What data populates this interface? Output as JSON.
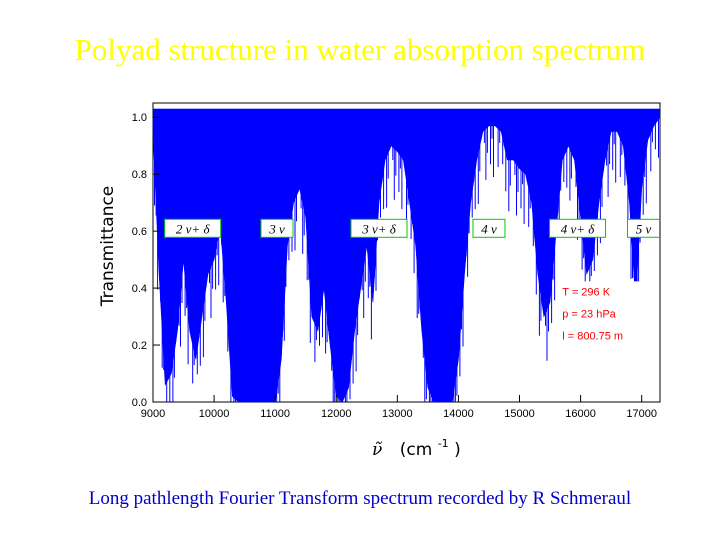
{
  "slide": {
    "title": "Polyad structure in water absorption spectrum",
    "caption": "Long pathlength Fourier Transform spectrum recorded by R Schmeraul"
  },
  "colors": {
    "title": "#ffff00",
    "caption": "#0000cc",
    "spectrum": "#0000ff",
    "label_box": "#00cc00",
    "conditions": "#ff0000"
  },
  "chart_data": {
    "type": "area",
    "xlabel": "ν̃  (cm-1)",
    "xlabel_symbol": "ν̃",
    "xlabel_unit": "(cm",
    "xlabel_exponent": "-1",
    "xlabel_close": ")",
    "ylabel": "Transmittance",
    "xlim": [
      9000,
      17300
    ],
    "ylim": [
      0.0,
      1.05
    ],
    "x_ticks": [
      9000,
      10000,
      11000,
      12000,
      13000,
      14000,
      15000,
      16000,
      17000
    ],
    "x_tick_labels": [
      "9000",
      "10000",
      "11000",
      "12000",
      "13000",
      "14000",
      "15000",
      "16000",
      "17000"
    ],
    "y_ticks": [
      0.0,
      0.2,
      0.4,
      0.6,
      0.8,
      1.0
    ],
    "y_tick_labels": [
      "0.0",
      "0.2",
      "0.4",
      "0.6",
      "0.8",
      "1.0"
    ],
    "grid": false,
    "series": [
      {
        "name": "",
        "x": [
          9000,
          9100,
          9200,
          9300,
          9400,
          9500,
          9600,
          9700,
          9800,
          9900,
          10000,
          10100,
          10200,
          10300,
          10400,
          10500,
          10600,
          10700,
          10800,
          10900,
          11000,
          11100,
          11200,
          11300,
          11400,
          11500,
          11600,
          11700,
          11800,
          11900,
          12000,
          12100,
          12200,
          12300,
          12400,
          12500,
          12600,
          12700,
          12800,
          12900,
          13000,
          13100,
          13200,
          13300,
          13400,
          13500,
          13600,
          13700,
          13800,
          13900,
          14000,
          14100,
          14200,
          14300,
          14400,
          14500,
          14600,
          14700,
          14800,
          14900,
          15000,
          15100,
          15200,
          15300,
          15400,
          15500,
          15600,
          15700,
          15800,
          15900,
          16000,
          16100,
          16200,
          16300,
          16400,
          16500,
          16600,
          16700,
          16800,
          16900,
          17000,
          17100,
          17200,
          17300
        ],
        "y": [
          0.95,
          0.45,
          0.06,
          0.1,
          0.25,
          0.5,
          0.25,
          0.15,
          0.3,
          0.45,
          0.5,
          0.62,
          0.35,
          0.02,
          0.0,
          0.0,
          0.0,
          0.0,
          0.0,
          0.0,
          0.0,
          0.15,
          0.55,
          0.7,
          0.75,
          0.65,
          0.3,
          0.25,
          0.4,
          0.2,
          0.02,
          0.0,
          0.05,
          0.25,
          0.4,
          0.55,
          0.35,
          0.7,
          0.85,
          0.9,
          0.88,
          0.85,
          0.7,
          0.55,
          0.25,
          0.05,
          0.0,
          0.0,
          0.0,
          0.0,
          0.15,
          0.45,
          0.7,
          0.85,
          0.95,
          0.97,
          0.97,
          0.95,
          0.85,
          0.85,
          0.82,
          0.8,
          0.7,
          0.45,
          0.3,
          0.35,
          0.6,
          0.85,
          0.9,
          0.85,
          0.65,
          0.45,
          0.5,
          0.7,
          0.85,
          0.95,
          0.95,
          0.9,
          0.7,
          0.35,
          0.75,
          0.92,
          0.97,
          1.0
        ]
      }
    ],
    "polyad_labels": [
      {
        "text": "2 ν+ δ",
        "x": 9650
      },
      {
        "text": "3 ν",
        "x": 11030
      },
      {
        "text": "3 ν+ δ",
        "x": 12700
      },
      {
        "text": "4 ν",
        "x": 14500
      },
      {
        "text": "4 ν+ δ",
        "x": 15950
      },
      {
        "text": "5 ν",
        "x": 17030
      }
    ],
    "polyad_label_y": 0.61,
    "conditions": [
      "T = 296 K",
      "p = 23 hPa",
      "l = 800.75 m"
    ],
    "conditions_position": "bottom-right"
  }
}
